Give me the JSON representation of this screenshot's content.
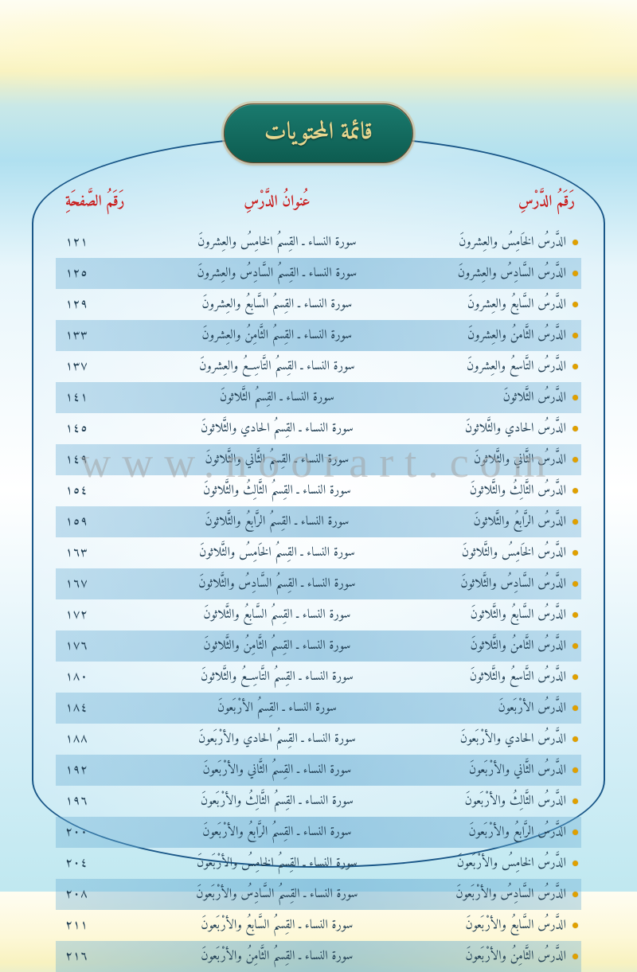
{
  "title": "قائمة المحتويات",
  "watermark": "www.noorart.com",
  "colors": {
    "header_text": "#c92020",
    "body_text": "#224055",
    "badge_bg_top": "#1a7a6e",
    "badge_bg_bottom": "#0d5c50",
    "badge_text": "#e8d890",
    "frame_border": "#1a5788",
    "stripe": "rgba(100,170,210,0.45)",
    "bullet": "#e0a000"
  },
  "typography": {
    "title_fontsize": 30,
    "header_fontsize": 19,
    "row_fontsize": 16
  },
  "headers": {
    "lesson": "رَقَمُ الدَّرْسِ",
    "title": "عُنوانُ الدَّرْسِ",
    "page": "رَقَمُ الصَّفحَةِ"
  },
  "rows": [
    {
      "lesson": "الدَّرسُ الخَامِسُ والعِشرونَ",
      "title": "سورة النساء ـ القِسمُ الخامِسُ والعِشرونَ",
      "page": "١٢١"
    },
    {
      "lesson": "الدَّرسُ السَّادِسُ والعِشرونَ",
      "title": "سورة النساء ـ القِسمُ السَّادِسُ والعِشرونَ",
      "page": "١٢٥"
    },
    {
      "lesson": "الدَّرسُ السَّابعُ والعِشرونَ",
      "title": "سورة النساء ـ القِسمُ السَّابعُ والعِشرونَ",
      "page": "١٢٩"
    },
    {
      "lesson": "الدَّرسُ الثَّامنُ والعِشرونَ",
      "title": "سورة النساء ـ القِسمُ الثَّامِنُ والعِشرونَ",
      "page": "١٣٣"
    },
    {
      "lesson": "الدَّرسُ التَّاسعُ والعِشرونَ",
      "title": "سورة النساء ـ القِسمُ التَّاسِعُ والعِشرونَ",
      "page": "١٣٧"
    },
    {
      "lesson": "الدَّرسُ الثَّلاثونَ",
      "title": "سورة النساء ـ القِسمُ الثَّلاثونَ",
      "page": "١٤١"
    },
    {
      "lesson": "الدَّرسُ الحادي والثَّلاثونَ",
      "title": "سورة النساء ـ القِسمُ الحادي والثَّلاثونَ",
      "page": "١٤٥"
    },
    {
      "lesson": "الدَّرسُ الثَّاني والثَّلاثونَ",
      "title": "سورة النساء ـ القِسمُ الثَّاني والثَّلاثونَ",
      "page": "١٤٩"
    },
    {
      "lesson": "الدَّرسُ الثَّالِثُ والثَّلاثونَ",
      "title": "سورة النساء ـ القِسمُ الثَّالِثُ والثَّلاثونَ",
      "page": "١٥٤"
    },
    {
      "lesson": "الدَّرسُ الرَّابعُ والثَّلاثونَ",
      "title": "سورة النساء ـ القِسمُ الرَّابعُ والثَّلاثونَ",
      "page": "١٥٩"
    },
    {
      "lesson": "الدَّرسُ الخَامِسُ والثَّلاثونَ",
      "title": "سورة النساء ـ القِسمُ الخَامِسُ والثَّلاثونَ",
      "page": "١٦٣"
    },
    {
      "lesson": "الدَّرسُ السَّادِسُ والثَّلاثونَ",
      "title": "سورة النساء ـ القِسمُ السَّادِسُ والثَّلاثونَ",
      "page": "١٦٧"
    },
    {
      "lesson": "الدَّرسُ السَّابعُ والثَّلاثونَ",
      "title": "سورة النساء ـ القِسمُ السَّابعُ والثَّلاثونَ",
      "page": "١٧٢"
    },
    {
      "lesson": "الدَّرسُ الثَّامنُ والثَّلاثونَ",
      "title": "سورة النساء ـ القِسمُ الثَّامِنُ والثَّلاثونَ",
      "page": "١٧٦"
    },
    {
      "lesson": "الدَّرسُ التَّاسعُ والثَّلاثونَ",
      "title": "سورة النساء ـ القِسمُ التَّاسِعُ والثَّلاثونَ",
      "page": "١٨٠"
    },
    {
      "lesson": "الدَّرسُ الأرْبَعونَ",
      "title": "سورة النساء ـ القِسمُ الأرْبَعونَ",
      "page": "١٨٤"
    },
    {
      "lesson": "الدَّرسُ الحادي والأرْبَعونَ",
      "title": "سورة النساء ـ القِسمُ الحادي والأرْبَعونَ",
      "page": "١٨٨"
    },
    {
      "lesson": "الدَّرسُ الثَّاني والأرْبَعونَ",
      "title": "سورة النساء ـ القِسمُ الثَّاني والأرْبَعونَ",
      "page": "١٩٢"
    },
    {
      "lesson": "الدَّرسُ الثَّالِثُ والأرْبَعونَ",
      "title": "سورة النساء ـ القِسمُ الثَّالِثُ والأرْبَعونَ",
      "page": "١٩٦"
    },
    {
      "lesson": "الدَّرسُ الرَّابعُ والأرْبَعونَ",
      "title": "سورة النساء ـ القِسمُ الرَّابعُ والأرْبَعونَ",
      "page": "٢٠٠"
    },
    {
      "lesson": "الدَّرسُ الخامِسُ والأرْبَعونَ",
      "title": "سورة النساء ـ القِسمُ الخامِسُ والأرْبَعونَ",
      "page": "٢٠٤"
    },
    {
      "lesson": "الدَّرسُ السَّادِسُ والأرْبَعونَ",
      "title": "سورة النساء ـ القِسمُ السَّادِسُ والأرْبَعونَ",
      "page": "٢٠٨"
    },
    {
      "lesson": "الدَّرسُ السَّابعُ والأرْبَعونَ",
      "title": "سورة النساء ـ القِسمُ السَّابعُ والأرْبَعونَ",
      "page": "٢١١"
    },
    {
      "lesson": "الدَّرسُ الثَّامِنُ والأرْبَعونَ",
      "title": "سورة النساء ـ القِسمُ الثَّامِنُ والأرْبَعونَ",
      "page": "٢١٦"
    }
  ]
}
